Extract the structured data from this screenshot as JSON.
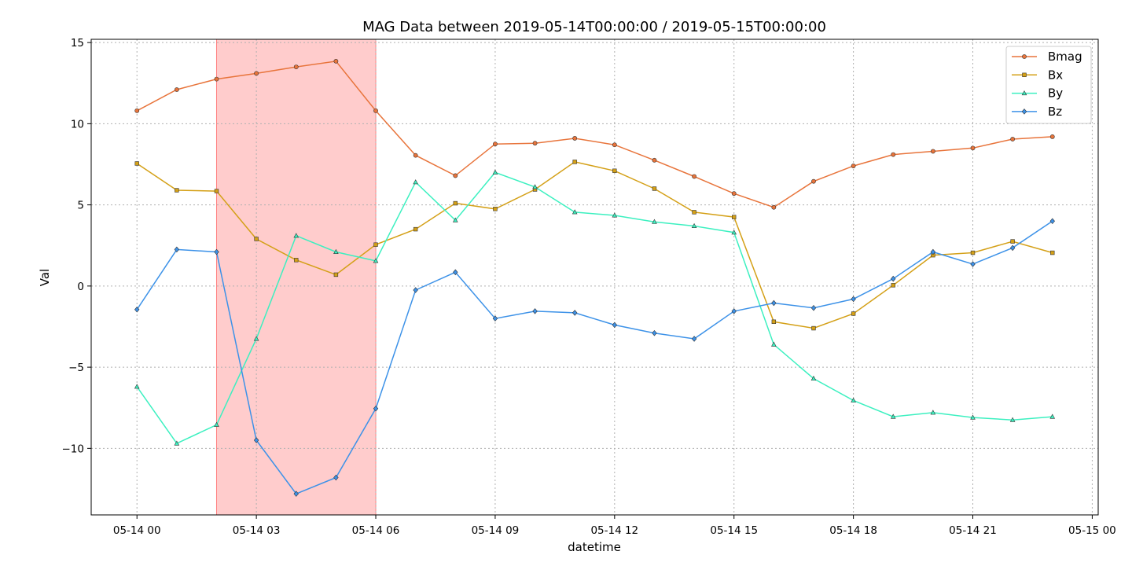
{
  "chart_data": {
    "type": "line",
    "title": "MAG Data between 2019-05-14T00:00:00 / 2019-05-15T00:00:00",
    "xlabel": "datetime",
    "ylabel": "Val",
    "x_hours": [
      0,
      1,
      2,
      3,
      4,
      5,
      6,
      7,
      8,
      9,
      10,
      11,
      12,
      13,
      14,
      15,
      16,
      17,
      18,
      19,
      20,
      21,
      22,
      23
    ],
    "x_tick_labels": [
      "05-14 00",
      "05-14 03",
      "05-14 06",
      "05-14 09",
      "05-14 12",
      "05-14 15",
      "05-14 18",
      "05-14 21",
      "05-15 00"
    ],
    "y_tick_labels": [
      "15",
      "10",
      "5",
      "0",
      "−5",
      "−10"
    ],
    "xlim": [
      "2019-05-13 22:51",
      "2019-05-15 00:09"
    ],
    "ylim": [
      -14.1,
      15.2
    ],
    "grid": true,
    "legend_position": "top-right",
    "highlight_band": {
      "start": "2019-05-14 02:00",
      "end": "2019-05-14 06:00",
      "color": "#ff9999"
    },
    "series": [
      {
        "name": "Bmag",
        "color": "#e8743b",
        "marker": "circle",
        "values": [
          10.8,
          12.1,
          12.75,
          13.1,
          13.5,
          13.85,
          10.8,
          8.05,
          6.8,
          8.75,
          8.8,
          9.1,
          8.7,
          7.75,
          6.75,
          5.7,
          4.85,
          6.45,
          7.4,
          8.1,
          8.3,
          8.5,
          9.05,
          9.2
        ]
      },
      {
        "name": "Bx",
        "color": "#d4a017",
        "marker": "square",
        "values": [
          7.55,
          5.9,
          5.85,
          2.9,
          1.6,
          0.7,
          2.55,
          3.5,
          5.1,
          4.75,
          5.95,
          7.65,
          7.1,
          6.0,
          4.55,
          4.25,
          -2.2,
          -2.6,
          -1.7,
          0.05,
          1.9,
          2.05,
          2.75,
          2.05
        ]
      },
      {
        "name": "By",
        "color": "#3cf0c0",
        "marker": "triangle",
        "values": [
          -6.2,
          -9.7,
          -8.55,
          -3.25,
          3.1,
          2.1,
          1.55,
          6.4,
          4.05,
          7.0,
          6.1,
          4.55,
          4.35,
          3.95,
          3.7,
          3.3,
          -3.6,
          -5.7,
          -7.05,
          -8.05,
          -7.8,
          -8.1,
          -8.25,
          -8.05
        ]
      },
      {
        "name": "Bz",
        "color": "#3d92e8",
        "marker": "diamond",
        "values": [
          -1.45,
          2.25,
          2.1,
          -9.5,
          -12.8,
          -11.8,
          -7.55,
          -0.25,
          0.85,
          -2.0,
          -1.55,
          -1.65,
          -2.4,
          -2.9,
          -3.25,
          -1.55,
          -1.05,
          -1.35,
          -0.8,
          0.45,
          2.1,
          1.35,
          2.35,
          4.0
        ]
      }
    ]
  }
}
